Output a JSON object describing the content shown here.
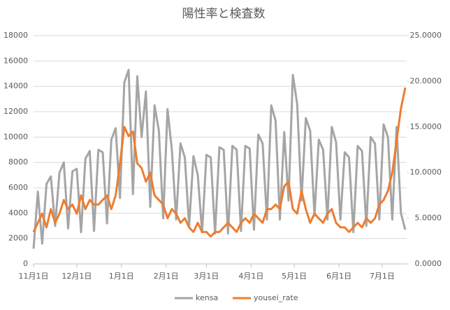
{
  "chart_data": {
    "type": "line",
    "title": "陽性率と検査数",
    "x": [
      0,
      3,
      6,
      9,
      12,
      15,
      18,
      21,
      24,
      27,
      30,
      33,
      36,
      39,
      42,
      45,
      48,
      51,
      54,
      57,
      60,
      63,
      66,
      69,
      72,
      75,
      78,
      81,
      84,
      87,
      90,
      93,
      96,
      99,
      102,
      105,
      108,
      111,
      114,
      117,
      120,
      123,
      126,
      129,
      132,
      135,
      138,
      141,
      144,
      147,
      150,
      153,
      156,
      159,
      162,
      165,
      168,
      171,
      174,
      177,
      180,
      183,
      186,
      189,
      192,
      195,
      198,
      201,
      204,
      207,
      210,
      213,
      216,
      219,
      222,
      225,
      228,
      231,
      234,
      237,
      240,
      243,
      246,
      249,
      252,
      255,
      258
    ],
    "xlim": [
      0,
      259
    ],
    "xticks": [
      {
        "value": 0,
        "label": "11月1日"
      },
      {
        "value": 30,
        "label": "12月1日"
      },
      {
        "value": 61,
        "label": "1月1日"
      },
      {
        "value": 92,
        "label": "2月1日"
      },
      {
        "value": 120,
        "label": "3月1日"
      },
      {
        "value": 151,
        "label": "4月1日"
      },
      {
        "value": 181,
        "label": "5月1日"
      },
      {
        "value": 212,
        "label": "6月1日"
      },
      {
        "value": 242,
        "label": "7月1日"
      }
    ],
    "ylim": [
      0,
      18000
    ],
    "yticks": [
      0,
      2000,
      4000,
      6000,
      8000,
      10000,
      12000,
      14000,
      16000,
      18000
    ],
    "y2lim": [
      0,
      25
    ],
    "y2ticks": [
      {
        "value": 0,
        "label": "0.0000"
      },
      {
        "value": 5,
        "label": "5.0000"
      },
      {
        "value": 10,
        "label": "10.0000"
      },
      {
        "value": 15,
        "label": "15.0000"
      },
      {
        "value": 20,
        "label": "20.0000"
      },
      {
        "value": 25,
        "label": "25.0000"
      }
    ],
    "grid": true,
    "legend": "bottom",
    "series": [
      {
        "name": "kensa",
        "color": "#a5a5a5",
        "values": [
          1200,
          5700,
          1600,
          6300,
          6900,
          3000,
          7200,
          8000,
          2800,
          7300,
          7500,
          2500,
          8300,
          8900,
          2600,
          9000,
          8800,
          3200,
          9800,
          10700,
          5200,
          14300,
          15300,
          5500,
          14800,
          10000,
          13600,
          4500,
          12500,
          10500,
          3600,
          12200,
          9000,
          3500,
          9500,
          8400,
          3000,
          8500,
          7000,
          2500,
          8600,
          8400,
          2400,
          9200,
          9000,
          2400,
          9300,
          9000,
          2600,
          9300,
          9100,
          2700,
          10200,
          9500,
          3500,
          12500,
          11300,
          3500,
          10400,
          5000,
          14900,
          12600,
          5000,
          11500,
          10500,
          3800,
          9800,
          9000,
          3500,
          10800,
          9600,
          3500,
          8800,
          8400,
          2500,
          9300,
          8900,
          3000,
          10000,
          9500,
          3500,
          11000,
          10000,
          3500,
          10800,
          4000,
          2700
        ]
      },
      {
        "name": "yousei_rate",
        "color": "#ed7d31",
        "axis": "y2",
        "values": [
          3.5,
          4.5,
          5.5,
          4.0,
          6.0,
          4.5,
          5.5,
          7.0,
          6.0,
          6.5,
          5.5,
          7.5,
          6.0,
          7.0,
          6.5,
          6.5,
          7.0,
          7.5,
          6.0,
          7.5,
          11.0,
          15.0,
          14.0,
          14.5,
          11.0,
          10.5,
          9.0,
          10.0,
          7.5,
          7.0,
          6.5,
          5.0,
          6.0,
          5.5,
          4.5,
          5.0,
          4.0,
          3.5,
          4.5,
          3.5,
          3.5,
          3.0,
          3.5,
          3.5,
          4.0,
          4.5,
          4.0,
          3.5,
          4.5,
          5.0,
          4.5,
          5.5,
          5.0,
          4.5,
          6.0,
          6.0,
          6.5,
          6.0,
          8.5,
          9.0,
          6.0,
          5.5,
          8.0,
          6.0,
          4.5,
          5.5,
          5.0,
          4.5,
          5.5,
          6.0,
          4.5,
          4.0,
          4.0,
          3.5,
          4.0,
          4.5,
          4.0,
          5.0,
          4.5,
          5.0,
          6.5,
          7.0,
          8.0,
          10.0,
          13.5,
          17.0,
          19.3
        ]
      }
    ]
  }
}
